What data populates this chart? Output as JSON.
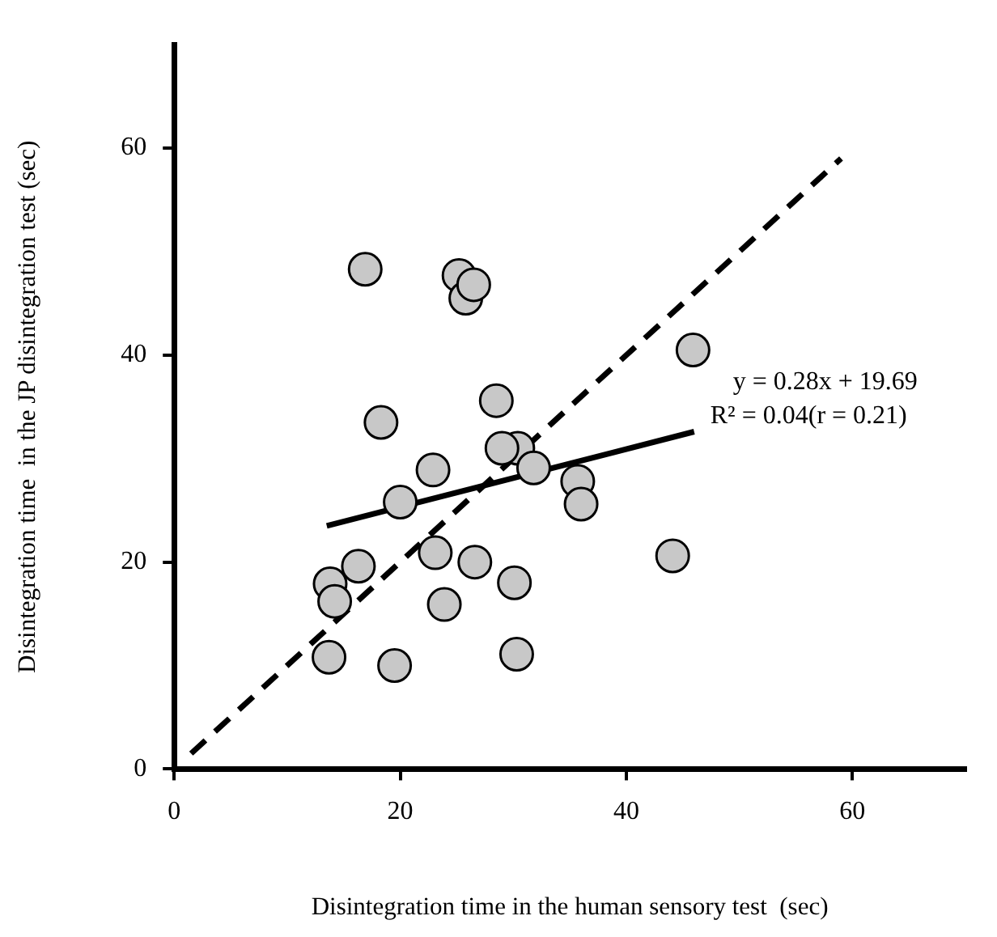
{
  "chart_data": {
    "type": "scatter",
    "xlabel": "Disintegration time in the human sensory test  (sec)",
    "ylabel": "Disintegration time  in the JP disintegration test (sec)",
    "x": [
      16.9,
      25.2,
      25.8,
      26.5,
      45.9,
      28.5,
      18.3,
      30.4,
      29.0,
      22.9,
      31.8,
      35.7,
      36.0,
      20.0,
      16.3,
      23.1,
      26.6,
      44.1,
      13.8,
      14.2,
      30.1,
      23.9,
      13.7,
      19.5,
      30.3
    ],
    "series": [
      {
        "color": "#c8c8c8",
        "marker": "circle",
        "values": [
          48.3,
          47.7,
          45.5,
          46.8,
          40.5,
          35.6,
          33.5,
          31.0,
          31.0,
          28.9,
          29.1,
          27.8,
          25.6,
          25.8,
          19.6,
          20.9,
          20.0,
          20.6,
          17.9,
          16.2,
          18.0,
          15.9,
          10.8,
          10.0,
          11.1
        ]
      },
      {
        "type": "line",
        "color": "#000000",
        "line_style": "dashed",
        "marker": "none",
        "x": [
          1.5,
          59
        ],
        "values": [
          1.5,
          59
        ]
      },
      {
        "type": "line",
        "color": "#000000",
        "line_style": "solid",
        "marker": "none",
        "x": [
          13.5,
          46
        ],
        "values": [
          23.5,
          32.6
        ]
      }
    ],
    "annotations": [
      "y = 0.28x + 19.69",
      "R² = 0.04(r = 0.21)"
    ],
    "xlim": [
      0,
      70
    ],
    "ylim": [
      0,
      70
    ],
    "xticks": [
      0,
      20,
      40,
      60
    ],
    "yticks": [
      0,
      20,
      40,
      60
    ],
    "grid": false,
    "legend": false
  }
}
